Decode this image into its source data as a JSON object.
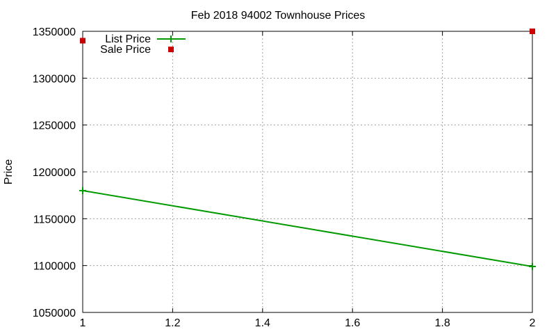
{
  "chart_data": {
    "type": "line",
    "title": "Feb 2018 94002 Townhouse Prices",
    "xlabel": "",
    "ylabel": "Price",
    "xlim": [
      1,
      2
    ],
    "ylim": [
      1050000,
      1350000
    ],
    "grid": true,
    "legend_position": "top-left",
    "x_ticks": [
      "1",
      "1.2",
      "1.4",
      "1.6",
      "1.8",
      "2"
    ],
    "y_ticks": [
      "1050000",
      "1100000",
      "1150000",
      "1200000",
      "1250000",
      "1300000",
      "1350000"
    ],
    "series": [
      {
        "name": "List Price",
        "style": "linespoints",
        "color": "#009900",
        "x": [
          1,
          2
        ],
        "values": [
          1180000,
          1099000
        ]
      },
      {
        "name": "Sale Price",
        "style": "points",
        "color": "#cc0000",
        "x": [
          1,
          2
        ],
        "values": [
          1340000,
          1350000
        ]
      }
    ]
  }
}
